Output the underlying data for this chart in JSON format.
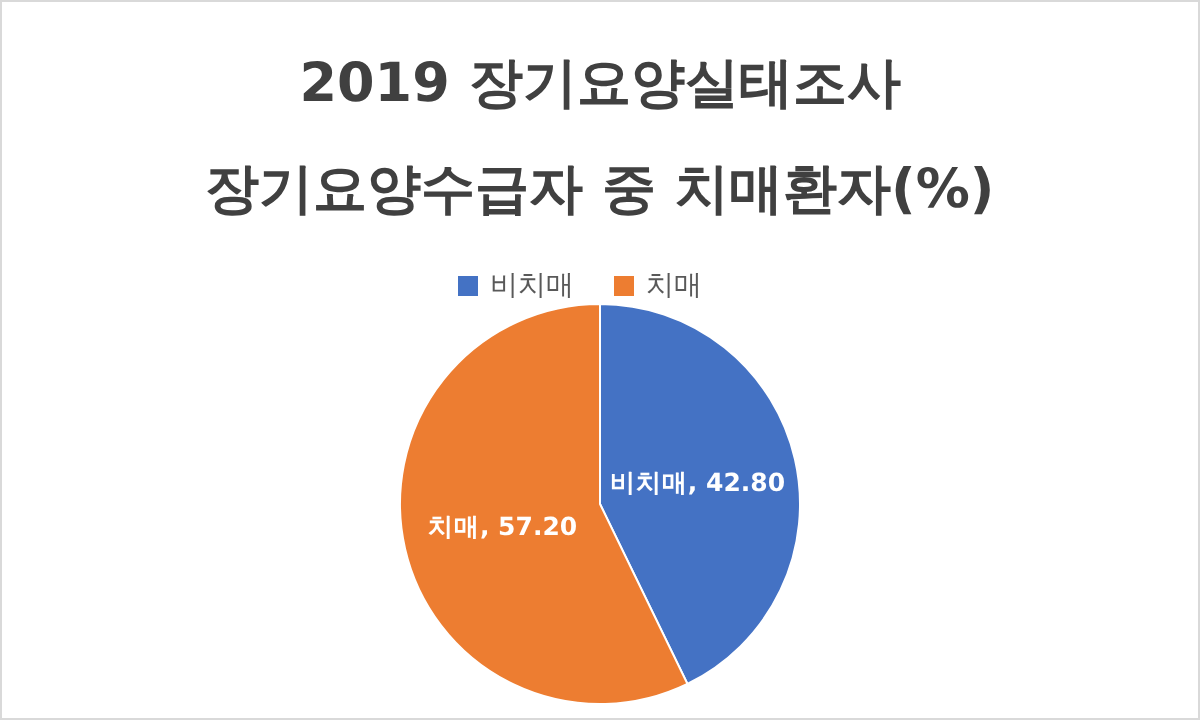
{
  "chart_data": {
    "type": "pie",
    "title": "2019 장기요양실태조사",
    "subtitle": "장기요양수급자 중 치매환자(%)",
    "categories": [
      "비치매",
      "치매"
    ],
    "values": [
      42.8,
      57.2
    ],
    "value_labels": [
      "비치매, 42.80",
      "치매, 57.20"
    ],
    "colors": [
      "#4472c4",
      "#ed7d31"
    ],
    "legend": "top"
  }
}
